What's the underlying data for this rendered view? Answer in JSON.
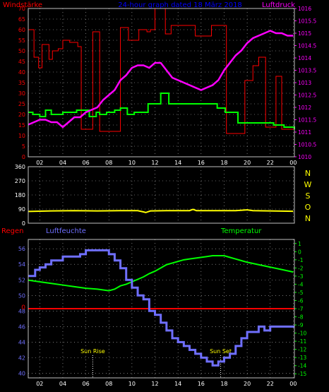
{
  "colors": {
    "background": "#000000",
    "frame": "#c0c0c0",
    "grid": "#c0c0c0",
    "wind": "#ff0000",
    "pressure": "#ff00ff",
    "gust": "#00ff00",
    "direction": "#ffff00",
    "humidity": "#6f6fff",
    "temperature": "#00ff00",
    "rain": "#ff0000",
    "title": "#0000ff",
    "compass": "#ffff00",
    "axis_white": "#ffffff",
    "humidity_label": "#6f6fff"
  },
  "chart_data": [
    {
      "type": "line",
      "title": "24-hour graph dated 18 März 2018",
      "left_axis_label": "Windstärke",
      "right_axis_label": "Luftdruck",
      "x_ticks": [
        "02",
        "04",
        "06",
        "08",
        "10",
        "12",
        "14",
        "16",
        "18",
        "20",
        "22",
        "00"
      ],
      "x_range": [
        1,
        24.1
      ],
      "left_ticks": [
        "0",
        "5",
        "10",
        "15",
        "20",
        "25",
        "30",
        "35",
        "40",
        "45",
        "50",
        "55",
        "60",
        "65",
        "70"
      ],
      "left_range": [
        0,
        70
      ],
      "right_ticks": [
        "1010",
        "1010.5",
        "1011",
        "1011.5",
        "1012",
        "1012.5",
        "1013",
        "1013.5",
        "1014",
        "1014.5",
        "1015",
        "1015.5",
        "1016"
      ],
      "right_range": [
        1010,
        1016
      ],
      "grid": true,
      "series": [
        {
          "axis": "left",
          "x": [
            1.0,
            1.5,
            1.9,
            2.2,
            2.8,
            3.1,
            3.6,
            4.0,
            4.6,
            5.3,
            5.6,
            6.6,
            7.2,
            9.0,
            9.7,
            10.6,
            11.3,
            11.6,
            12.0,
            12.9,
            13.4,
            15.5,
            16.9,
            18.2,
            19.8,
            20.5,
            21.0,
            21.6,
            22.5,
            23.0,
            23.5,
            24.1
          ],
          "y": [
            60,
            47,
            42,
            53,
            46,
            50,
            51,
            55,
            54,
            52,
            13,
            59,
            12,
            61,
            55,
            60,
            59,
            60,
            70,
            58,
            62,
            57,
            62,
            11,
            36,
            43,
            47,
            14,
            38,
            13,
            13,
            13
          ]
        },
        {
          "axis": "left",
          "x": [
            1.0,
            1.4,
            2.0,
            2.5,
            3.0,
            4.0,
            5.2,
            6.3,
            6.9,
            7.2,
            7.8,
            8.5,
            9.0,
            9.6,
            10.2,
            11.4,
            11.9,
            12.5,
            13.2,
            14.0,
            15.4,
            16.8,
            17.4,
            18.1,
            19.2,
            20.4,
            22.3,
            23.2,
            24.1
          ],
          "y": [
            21,
            20,
            19,
            22,
            20,
            21,
            22,
            19,
            21,
            20,
            21,
            22,
            23,
            20,
            21,
            25,
            25,
            30,
            25,
            25,
            25,
            25,
            23,
            21,
            16,
            16,
            15,
            14,
            13
          ]
        },
        {
          "axis": "right",
          "x": [
            1.0,
            1.5,
            2.0,
            2.5,
            3.0,
            3.5,
            4.0,
            4.5,
            5.0,
            5.5,
            6.0,
            6.5,
            7.0,
            7.5,
            8.0,
            8.5,
            9.0,
            9.5,
            10.0,
            10.5,
            11.0,
            11.5,
            12.0,
            12.5,
            13.0,
            13.5,
            14.0,
            14.5,
            15.0,
            15.5,
            16.0,
            16.5,
            17.0,
            17.5,
            18.0,
            18.5,
            19.0,
            19.5,
            20.0,
            20.5,
            21.0,
            21.5,
            22.0,
            22.5,
            23.0,
            23.5,
            24.0
          ],
          "y": [
            1011.3,
            1011.4,
            1011.5,
            1011.5,
            1011.4,
            1011.4,
            1011.2,
            1011.4,
            1011.6,
            1011.6,
            1011.8,
            1011.9,
            1012.0,
            1012.3,
            1012.5,
            1012.7,
            1013.1,
            1013.3,
            1013.6,
            1013.7,
            1013.7,
            1013.6,
            1013.8,
            1013.8,
            1013.5,
            1013.2,
            1013.1,
            1013.0,
            1012.9,
            1012.8,
            1012.7,
            1012.8,
            1012.9,
            1013.1,
            1013.5,
            1013.8,
            1014.1,
            1014.3,
            1014.6,
            1014.8,
            1014.9,
            1015.0,
            1015.1,
            1015.0,
            1015.0,
            1014.9,
            1014.9
          ]
        }
      ]
    },
    {
      "type": "line",
      "compass_labels": [
        "N",
        "W",
        "S",
        "O",
        "N"
      ],
      "x_range": [
        1,
        24.1
      ],
      "left_ticks": [
        "0",
        "90",
        "180",
        "270",
        "360"
      ],
      "left_range": [
        0,
        360
      ],
      "grid": true,
      "series": [
        {
          "x": [
            1.0,
            3.0,
            5.0,
            7.0,
            9.0,
            10.5,
            11.0,
            11.2,
            11.6,
            13.0,
            15.0,
            15.3,
            15.6,
            17.0,
            19.0,
            20.0,
            20.5,
            22.0,
            24.0
          ],
          "y": [
            75,
            78,
            80,
            78,
            80,
            80,
            72,
            68,
            78,
            80,
            80,
            88,
            80,
            80,
            80,
            85,
            80,
            78,
            76
          ]
        }
      ]
    },
    {
      "type": "line",
      "rain_label": "Regen",
      "humidity_label": "Luftfeuchte",
      "temperature_label": "Temperatur",
      "x_ticks": [
        "02",
        "04",
        "06",
        "08",
        "10",
        "12",
        "14",
        "16",
        "18",
        "20",
        "22",
        "00"
      ],
      "x_range": [
        1,
        24.1
      ],
      "left_ticks": [
        "40",
        "42",
        "44",
        "46",
        "48",
        "50",
        "52",
        "54",
        "56"
      ],
      "left_range": [
        39.4,
        57.2
      ],
      "right_ticks": [
        "1",
        "0",
        "-1",
        "-2",
        "-3",
        "-4",
        "-5",
        "-6",
        "-7",
        "-8",
        "-9",
        "-10",
        "-11",
        "-12",
        "-13",
        "-14",
        "-15"
      ],
      "right_range": [
        -15.5,
        1.5
      ],
      "zero_ticks": [
        "0"
      ],
      "annotations": [
        "Sun Rise",
        "Sun Set"
      ],
      "annotation_x": [
        6.6,
        17.7
      ],
      "grid": true,
      "series": [
        {
          "axis": "left",
          "x": [
            1.0,
            1.6,
            2.0,
            2.5,
            3.0,
            4.0,
            5.5,
            6.0,
            7.0,
            8.0,
            8.5,
            9.0,
            9.5,
            10.0,
            10.5,
            11.0,
            11.5,
            12.0,
            12.5,
            13.0,
            13.5,
            14.0,
            14.5,
            15.0,
            15.5,
            16.0,
            16.5,
            17.0,
            17.5,
            18.0,
            18.5,
            19.0,
            19.5,
            20.0,
            21.0,
            21.5,
            22.0,
            22.5,
            23.0,
            24.1
          ],
          "y": [
            52.5,
            53.3,
            53.6,
            54.0,
            54.5,
            55.0,
            55.3,
            55.8,
            55.8,
            55.3,
            54.5,
            53.5,
            52.0,
            51.0,
            50.0,
            49.5,
            48.0,
            47.5,
            46.5,
            45.5,
            44.5,
            44.0,
            43.5,
            43.0,
            42.5,
            42.0,
            41.5,
            41.0,
            41.5,
            42.0,
            42.5,
            43.5,
            44.5,
            45.3,
            46.0,
            45.5,
            46.0,
            46.0,
            46.0,
            46.0
          ]
        },
        {
          "axis": "right",
          "x": [
            1.0,
            2.0,
            3.0,
            4.0,
            5.0,
            6.0,
            7.0,
            8.0,
            8.5,
            9.0,
            9.5,
            10.0,
            10.5,
            11.0,
            11.5,
            12.0,
            12.5,
            13.0,
            13.5,
            14.0,
            14.5,
            15.0,
            15.5,
            16.0,
            16.5,
            17.0,
            17.5,
            18.0,
            18.5,
            19.0,
            19.5,
            20.0,
            21.0,
            22.0,
            23.0,
            24.0
          ],
          "y": [
            -3.5,
            -3.7,
            -3.9,
            -4.1,
            -4.3,
            -4.5,
            -4.6,
            -4.8,
            -4.6,
            -4.2,
            -4.0,
            -3.7,
            -3.4,
            -3.1,
            -2.7,
            -2.4,
            -2.0,
            -1.6,
            -1.4,
            -1.2,
            -1.0,
            -0.9,
            -0.8,
            -0.7,
            -0.6,
            -0.5,
            -0.5,
            -0.5,
            -0.7,
            -0.9,
            -1.1,
            -1.3,
            -1.6,
            -1.9,
            -2.2,
            -2.5
          ]
        },
        {
          "axis": "right",
          "x": [
            1.0,
            24.1
          ],
          "y": [
            -7,
            -7
          ]
        }
      ]
    }
  ]
}
